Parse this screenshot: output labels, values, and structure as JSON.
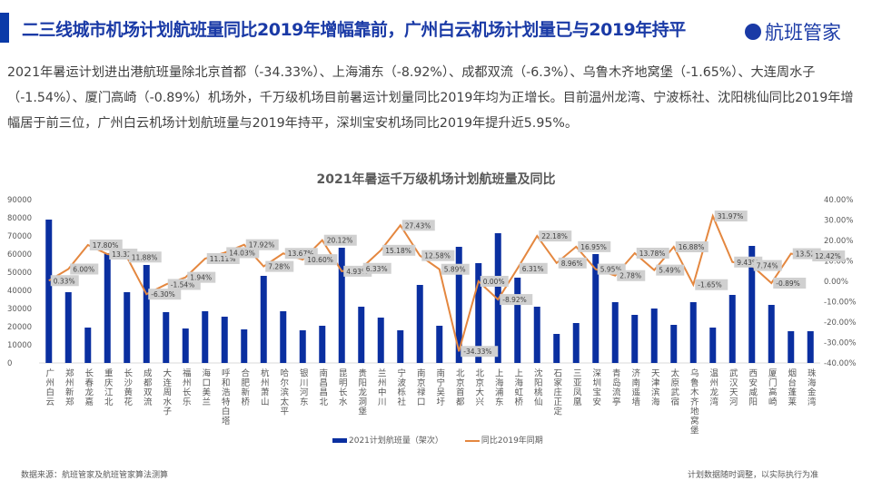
{
  "header": {
    "title": "二三线城市机场计划航班量同比2019年增幅靠前，广州白云机场计划量已与2019年持平",
    "logo_text": "航班管家"
  },
  "summary": "2021年暑运计划进出港航班量除北京首都（-34.33%）、上海浦东（-8.92%）、成都双流（-6.3%）、乌鲁木齐地窝堡（-1.65%）、大连周水子（-1.54%）、厦门高崎（-0.89%）机场外，千万级机场目前暑运计划量同比2019年均为正增长。目前温州龙湾、宁波栎社、沈阳桃仙同比2019年增幅居于前三位，广州白云机场计划航班量与2019年持平，深圳宝安机场同比2019年提升近5.95%。",
  "footer": {
    "source": "数据来源：航班管家及航班管家算法测算",
    "note": "计划数据随时调整，以实际执行为准"
  },
  "colors": {
    "bar": "#0a2fa0",
    "line": "#e4873f",
    "title": "#1a3aa6"
  },
  "chart_data": {
    "type": "bar+line",
    "title": "2021年暑运千万级机场计划航班量及同比",
    "categories": [
      "广州白云",
      "郑州新郑",
      "长春龙嘉",
      "重庆江北",
      "长沙黄花",
      "成都双流",
      "大连周水子",
      "福州长乐",
      "海口美兰",
      "呼和浩特白塔",
      "合肥新桥",
      "杭州萧山",
      "哈尔滨太平",
      "银川河东",
      "南昌昌北",
      "昆明长水",
      "贵阳龙洞堡",
      "兰州中川",
      "宁波栎社",
      "南京禄口",
      "南宁吴圩",
      "北京首都",
      "北京大兴",
      "上海浦东",
      "上海虹桥",
      "沈阳桃仙",
      "石家庄正定",
      "三亚凤凰",
      "深圳宝安",
      "青岛流亭",
      "济南遥墙",
      "天津滨海",
      "太原武宿",
      "乌鲁木齐地窝堡",
      "温州龙湾",
      "武汉天河",
      "西安咸阳",
      "厦门高崎",
      "烟台蓬莱",
      "珠海金湾"
    ],
    "series": [
      {
        "name": "2021计划航班量（架次）",
        "type": "bar",
        "axis": "left",
        "values": [
          79000,
          39000,
          19500,
          60500,
          39000,
          54000,
          28000,
          19000,
          28500,
          25500,
          18500,
          48000,
          28500,
          18000,
          20500,
          63500,
          31000,
          25000,
          18000,
          43000,
          20500,
          64000,
          55000,
          71500,
          47000,
          31000,
          16000,
          22000,
          60000,
          33500,
          26500,
          30000,
          21000,
          33500,
          19500,
          37500,
          64500,
          32000,
          17500,
          17500
        ]
      },
      {
        "name": "同比2019年同期",
        "type": "line",
        "axis": "right",
        "values": [
          0.33,
          6.0,
          17.8,
          13.32,
          11.88,
          -6.3,
          -1.54,
          1.94,
          11.11,
          14.03,
          17.92,
          7.28,
          13.67,
          10.6,
          20.12,
          4.93,
          6.33,
          15.18,
          27.43,
          12.58,
          5.89,
          -34.33,
          0.0,
          -8.92,
          6.31,
          22.18,
          8.96,
          16.95,
          5.95,
          2.78,
          13.78,
          5.49,
          16.88,
          -1.65,
          31.97,
          9.43,
          7.74,
          -0.89,
          13.52,
          12.42
        ],
        "labels": [
          "0.33%",
          "6.00%",
          "17.80%",
          "13.32",
          "11.88%",
          "-6.30%",
          "-1.54%",
          "1.94%",
          "11.11%",
          "14.03%",
          "17.92%",
          "7.28%",
          "13.67%",
          "10.60%",
          "20.12%",
          "4.93%",
          "6.33%",
          "15.18%",
          "27.43%",
          "12.58%",
          "5.89%",
          "-34.33%",
          "0.00%",
          "-8.92%",
          "6.31%",
          "22.18%",
          "8.96%",
          "16.95%",
          "5.95%",
          "2.78%",
          "13.78%",
          "5.49%",
          "16.88%",
          "-1.65%",
          "31.97%",
          "9.43%",
          "7.74%",
          "-0.89%",
          "13.52",
          "12.42%"
        ]
      }
    ],
    "ylim_left": [
      0,
      90000
    ],
    "yticks_left": [
      "0",
      "10000",
      "20000",
      "30000",
      "40000",
      "50000",
      "60000",
      "70000",
      "80000",
      "90000"
    ],
    "ylim_right": [
      -40,
      40
    ],
    "yticks_right": [
      "-40.00%",
      "-30.00%",
      "-20.00%",
      "-10.00%",
      "0.00%",
      "10.00%",
      "20.00%",
      "30.00%",
      "40.00%"
    ],
    "grid": false,
    "legend": "bottom"
  }
}
